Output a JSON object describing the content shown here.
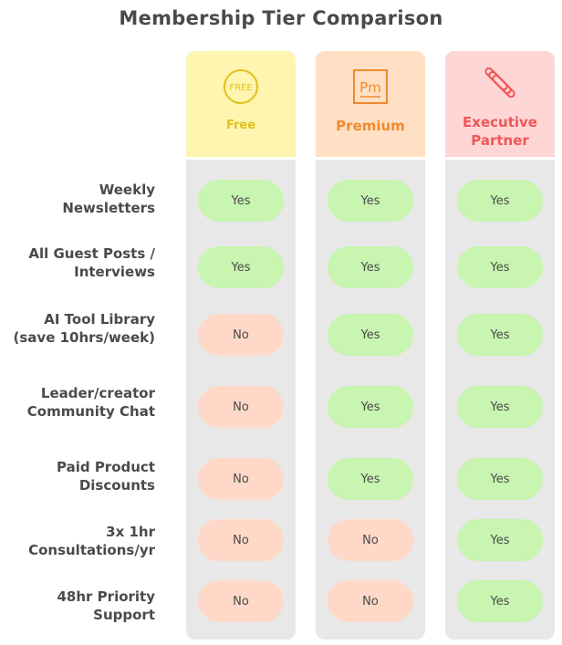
{
  "title": "Membership Tier Comparison",
  "tiers": [
    {
      "name_lines": [
        "Free"
      ],
      "icon": "free-badge-icon",
      "icon_text": "FREE",
      "bg": "#fdf5b0",
      "fg": "#e2bf1c"
    },
    {
      "name_lines": [
        "Premium"
      ],
      "icon": "pm-icon",
      "icon_text": "Pm",
      "bg": "#ffe0c4",
      "fg": "#ef8a2e"
    },
    {
      "name_lines": [
        "Executive",
        "Partner"
      ],
      "icon": "pencil-stack-icon",
      "bg": "#ffd6d6",
      "fg": "#ef5757"
    }
  ],
  "features": [
    {
      "lines": [
        "Weekly",
        "Newsletters"
      ],
      "values": [
        "Yes",
        "Yes",
        "Yes"
      ]
    },
    {
      "lines": [
        "All Guest Posts /",
        "Interviews"
      ],
      "values": [
        "Yes",
        "Yes",
        "Yes"
      ]
    },
    {
      "lines": [
        "AI Tool Library",
        "(save 10hrs/week)"
      ],
      "values": [
        "No",
        "Yes",
        "Yes"
      ]
    },
    {
      "lines": [
        "Leader/creator",
        "Community Chat"
      ],
      "values": [
        "No",
        "Yes",
        "Yes"
      ]
    },
    {
      "lines": [
        "Paid Product",
        "Discounts"
      ],
      "values": [
        "No",
        "Yes",
        "Yes"
      ]
    },
    {
      "lines": [
        "3x 1hr",
        "Consultations/yr"
      ],
      "values": [
        "No",
        "No",
        "Yes"
      ]
    },
    {
      "lines": [
        "48hr Priority",
        "Support"
      ],
      "values": [
        "No",
        "No",
        "Yes"
      ]
    }
  ],
  "colors": {
    "yes": "#c8f5b0",
    "no": "#ffd8c7",
    "column": "#e8e8e8"
  }
}
